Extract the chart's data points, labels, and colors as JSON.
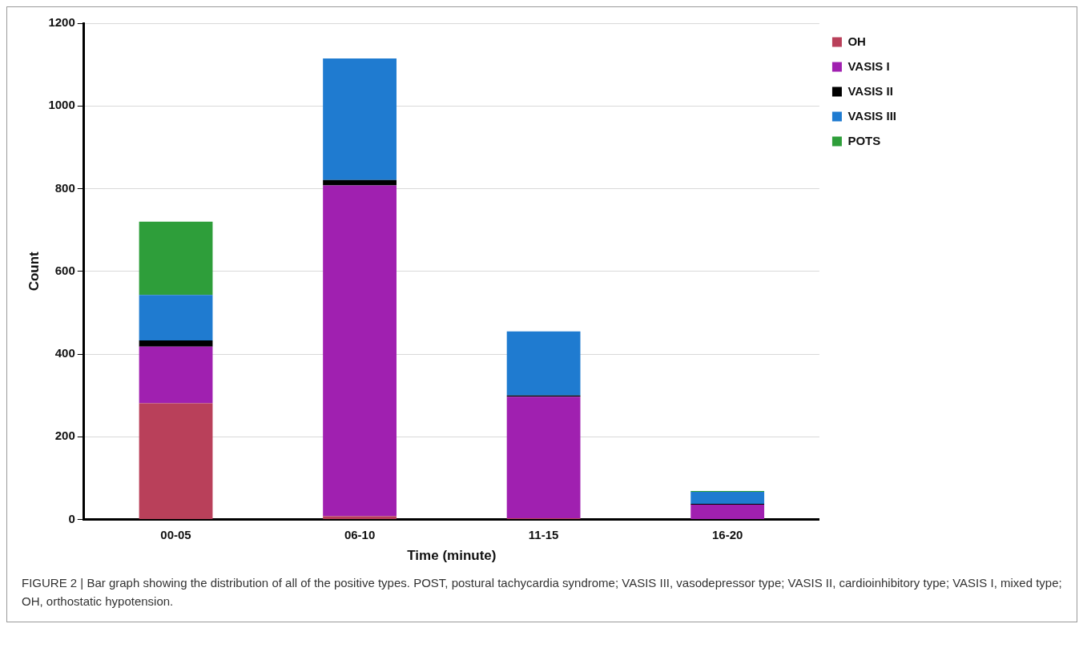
{
  "chart_data": {
    "type": "bar",
    "stacked": true,
    "categories": [
      "00-05",
      "06-10",
      "11-15",
      "16-20"
    ],
    "series": [
      {
        "name": "OH",
        "color": "#b9405a",
        "values": [
          281,
          8,
          3,
          0
        ]
      },
      {
        "name": "VASIS I",
        "color": "#a020b0",
        "values": [
          137,
          800,
          294,
          36
        ]
      },
      {
        "name": "VASIS II",
        "color": "#000000",
        "values": [
          15,
          13,
          3,
          2
        ]
      },
      {
        "name": "VASIS III",
        "color": "#1f7bd0",
        "values": [
          110,
          294,
          155,
          29
        ]
      },
      {
        "name": "POTS",
        "color": "#2e9e3a",
        "values": [
          177,
          0,
          0,
          2
        ]
      }
    ],
    "xlabel": "Time (minute)",
    "ylabel": "Count",
    "ylim": [
      0,
      1200
    ],
    "yticks": [
      0,
      200,
      400,
      600,
      800,
      1000,
      1200
    ],
    "grid": "y",
    "legend": "top right",
    "annotations": [
      "FIGURE 2 | Bar graph showing the distribution of all of the positive types. POST, postural tachycardia syndrome; VASIS III, vasodepressor type; VASIS II, cardioinhibitory type; VASIS I, mixed type; OH, orthostatic hypotension."
    ]
  }
}
